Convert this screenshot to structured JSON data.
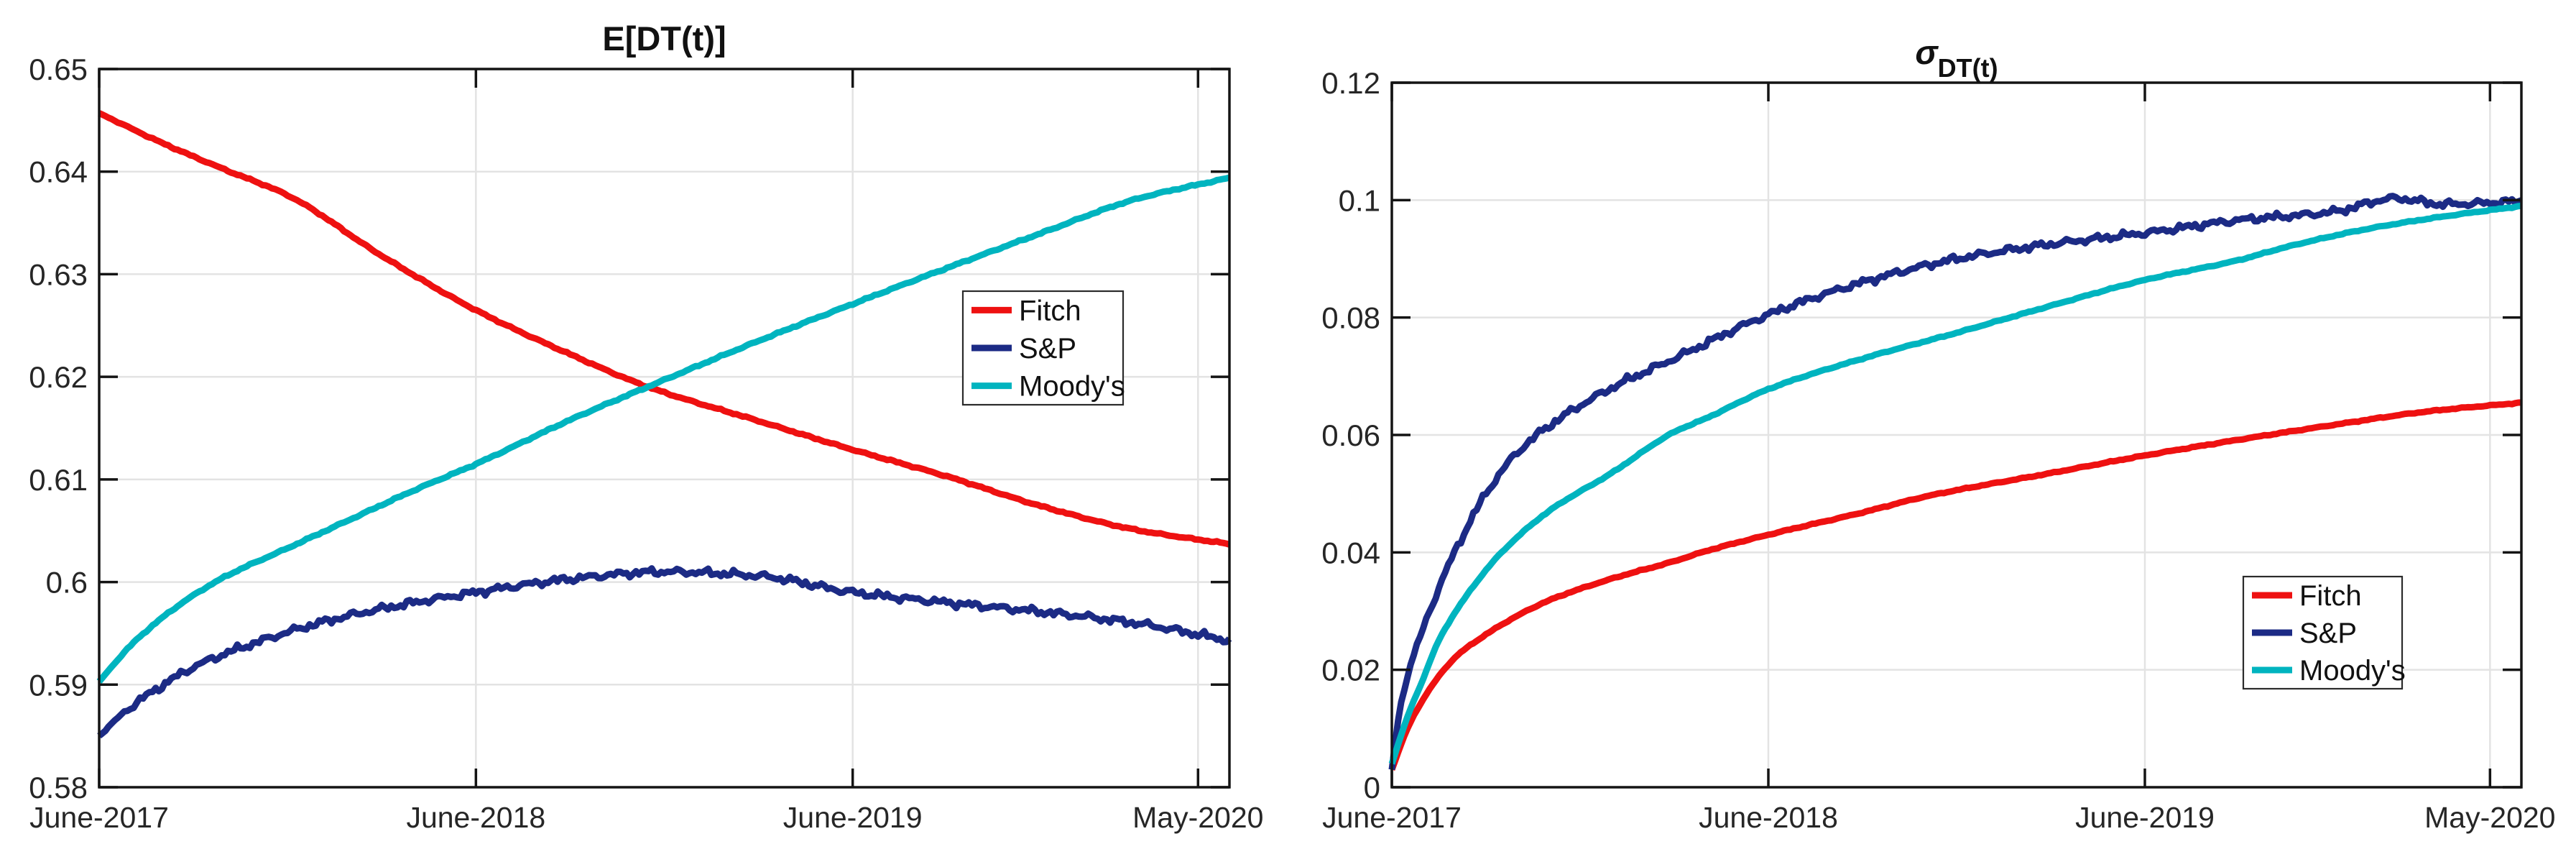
{
  "figure": {
    "background": "#ffffff",
    "axis_color": "#141414",
    "grid_color": "#e3e3e3",
    "tick_label_color": "#262626",
    "title_color": "#111111"
  },
  "chart_data": [
    {
      "id": "left",
      "type": "line",
      "title_main": "E[DT(t)]",
      "title_sub": "",
      "xlabel": "",
      "ylabel": "",
      "x_tick_labels": [
        "June-2017",
        "June-2018",
        "June-2019",
        "May-2020"
      ],
      "x_tick_months": [
        0,
        12,
        24,
        35
      ],
      "x_range_months": [
        0,
        36
      ],
      "ylim": [
        0.58,
        0.65
      ],
      "yticks": [
        0.58,
        0.59,
        0.6,
        0.61,
        0.62,
        0.63,
        0.64,
        0.65
      ],
      "ytick_labels": [
        "0.58",
        "0.59",
        "0.6",
        "0.61",
        "0.62",
        "0.63",
        "0.64",
        "0.65"
      ],
      "grid": true,
      "legend": {
        "items": [
          "Fitch",
          "S&P",
          "Moody's"
        ],
        "position": "right-center"
      },
      "series": [
        {
          "name": "Fitch",
          "color": "#ee1111",
          "noise": 8e-05,
          "t": [
            0,
            2,
            4,
            6,
            9,
            12,
            15,
            17.5,
            21,
            24,
            27,
            30,
            33,
            36
          ],
          "v": [
            0.6457,
            0.6428,
            0.6402,
            0.6377,
            0.6318,
            0.6265,
            0.6222,
            0.619,
            0.6157,
            0.6129,
            0.6103,
            0.6074,
            0.6051,
            0.6037
          ]
        },
        {
          "name": "S&P",
          "color": "#1c2b85",
          "noise": 0.00038,
          "t": [
            0,
            1,
            2,
            3,
            5,
            7,
            9,
            12,
            15,
            18,
            21,
            24,
            27,
            30,
            33,
            36
          ],
          "v": [
            0.585,
            0.5878,
            0.5899,
            0.5917,
            0.5941,
            0.596,
            0.5974,
            0.599,
            0.6003,
            0.601,
            0.6006,
            0.599,
            0.598,
            0.5971,
            0.596,
            0.5943
          ]
        },
        {
          "name": "Moody's",
          "color": "#00b4bf",
          "noise": 8e-05,
          "t": [
            0,
            1,
            2,
            3,
            4,
            6,
            8,
            10,
            12,
            15,
            18,
            21,
            24,
            27,
            30,
            33,
            36
          ],
          "v": [
            0.5903,
            0.5938,
            0.5965,
            0.5987,
            0.6005,
            0.6033,
            0.6061,
            0.6089,
            0.6115,
            0.6158,
            0.6197,
            0.6235,
            0.6271,
            0.6306,
            0.634,
            0.6373,
            0.6394
          ]
        }
      ]
    },
    {
      "id": "right",
      "type": "line",
      "title_main": "σ",
      "title_sub": "DT(t)",
      "xlabel": "",
      "ylabel": "",
      "x_tick_labels": [
        "June-2017",
        "June-2018",
        "June-2019",
        "May-2020"
      ],
      "x_tick_months": [
        0,
        12,
        24,
        35
      ],
      "x_range_months": [
        0,
        36
      ],
      "ylim": [
        0,
        0.12
      ],
      "yticks": [
        0,
        0.02,
        0.04,
        0.06,
        0.08,
        0.1,
        0.12
      ],
      "ytick_labels": [
        "0",
        "0.02",
        "0.04",
        "0.06",
        "0.08",
        "0.1",
        "0.12"
      ],
      "grid": true,
      "legend": {
        "items": [
          "Fitch",
          "S&P",
          "Moody's"
        ],
        "position": "right-lower"
      },
      "series": [
        {
          "name": "Fitch",
          "color": "#ee1111",
          "noise": 0.0001,
          "t": [
            0,
            0.5,
            1,
            2,
            3,
            4,
            5,
            7,
            9,
            10,
            12,
            15,
            17,
            21,
            24,
            27,
            30,
            33,
            36
          ],
          "v": [
            0.003,
            0.01,
            0.015,
            0.022,
            0.026,
            0.0292,
            0.0318,
            0.0355,
            0.0385,
            0.0402,
            0.043,
            0.0468,
            0.0495,
            0.0535,
            0.0565,
            0.0592,
            0.0617,
            0.064,
            0.0655
          ]
        },
        {
          "name": "S&P",
          "color": "#1c2b85",
          "noise": 0.00065,
          "t": [
            0,
            0.25,
            0.5,
            1,
            1.5,
            2,
            3,
            4,
            5,
            7,
            9,
            12,
            15,
            18,
            21,
            24,
            27,
            30,
            32,
            33.5,
            36
          ],
          "v": [
            0.003,
            0.013,
            0.019,
            0.027,
            0.034,
            0.04,
            0.05,
            0.057,
            0.0615,
            0.068,
            0.073,
            0.0805,
            0.086,
            0.09,
            0.0925,
            0.0944,
            0.0966,
            0.098,
            0.1003,
            0.0993,
            0.0998
          ]
        },
        {
          "name": "Moody's",
          "color": "#00b4bf",
          "noise": 0.0001,
          "t": [
            0,
            0.5,
            1,
            1.5,
            2.5,
            3.5,
            5,
            7,
            9,
            10,
            12,
            15,
            18,
            21,
            24,
            27,
            28.5,
            31,
            33,
            36
          ],
          "v": [
            0.004,
            0.012,
            0.0185,
            0.025,
            0.0335,
            0.04,
            0.047,
            0.0535,
            0.0605,
            0.0628,
            0.0678,
            0.073,
            0.0774,
            0.082,
            0.0864,
            0.0898,
            0.092,
            0.095,
            0.0968,
            0.099
          ]
        }
      ]
    }
  ]
}
